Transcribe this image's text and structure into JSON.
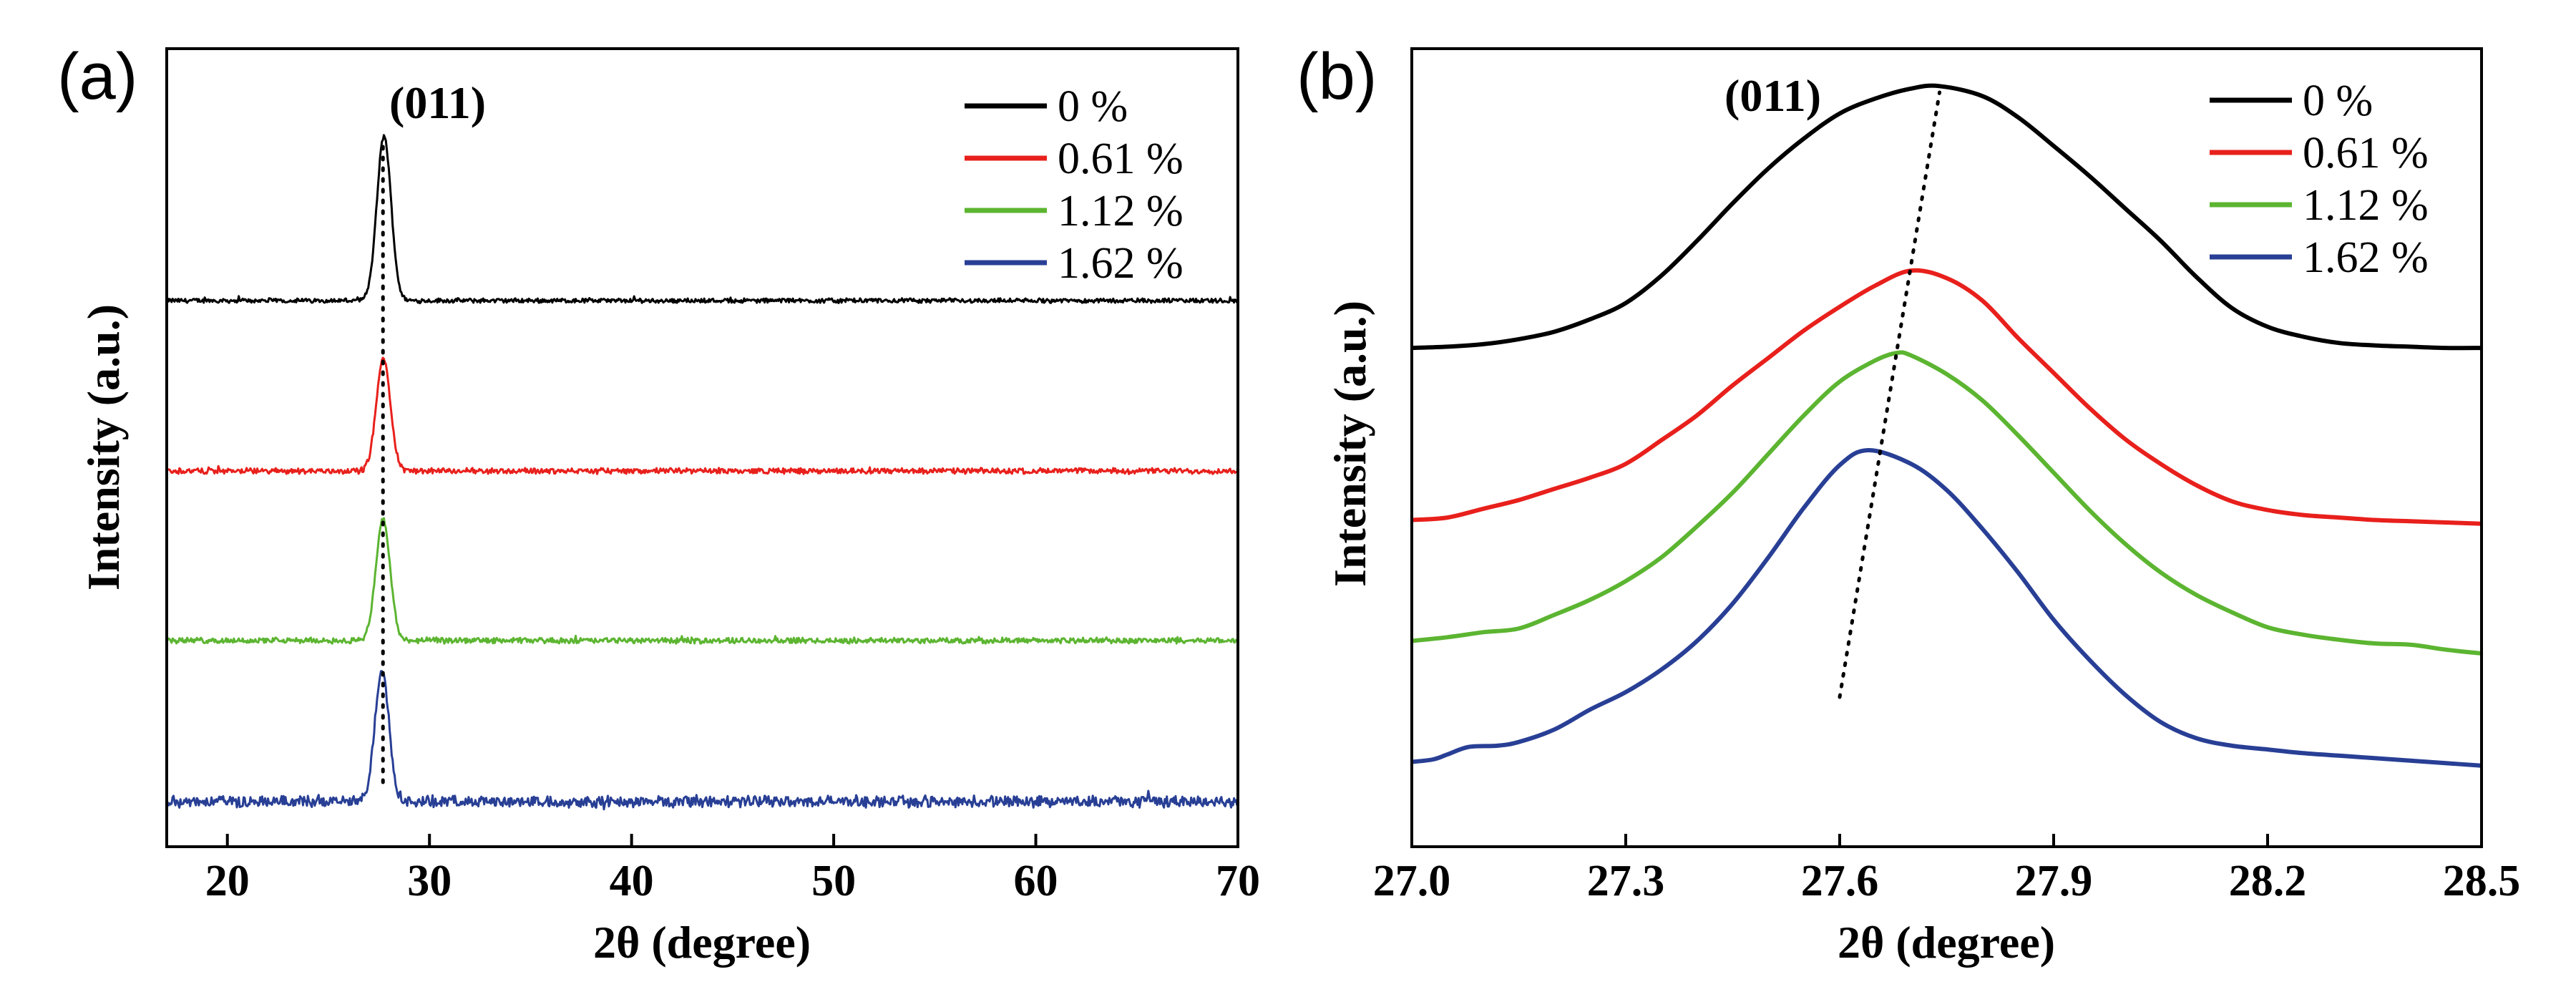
{
  "chart_data": [
    {
      "panel": "(a)",
      "type": "line",
      "title": "",
      "xlabel": "2θ (degree)",
      "ylabel": "Intensity (a.u.)",
      "xlim": [
        17,
        70
      ],
      "xticks": [
        20,
        30,
        40,
        50,
        60,
        70
      ],
      "xtick_labels": [
        "20",
        "30",
        "40",
        "50",
        "60",
        "70"
      ],
      "yticks": "none",
      "annotation": "(011)",
      "peak_position": 27.7,
      "guide_line": {
        "style": "dotted",
        "x": [
          27.7,
          27.7
        ]
      },
      "legend_placement": "top-right",
      "series": [
        {
          "name": "0 %",
          "color": "#000000",
          "baseline": 3.0,
          "peak_x": 27.75,
          "peak_height": 1.0,
          "peak_width": 0.35,
          "noise": 0.012
        },
        {
          "name": "0.61 %",
          "color": "#e8201c",
          "baseline": 2.0,
          "peak_x": 27.72,
          "peak_height": 0.68,
          "peak_width": 0.35,
          "noise": 0.015
        },
        {
          "name": "1.12 %",
          "color": "#5cb531",
          "baseline": 1.0,
          "peak_x": 27.7,
          "peak_height": 0.74,
          "peak_width": 0.35,
          "noise": 0.015
        },
        {
          "name": "1.62 %",
          "color": "#283f95",
          "baseline": 0.0,
          "peak_x": 27.65,
          "peak_height": 0.8,
          "peak_width": 0.35,
          "noise": 0.03
        }
      ]
    },
    {
      "panel": "(b)",
      "type": "line",
      "title": "",
      "xlabel": "2θ (degree)",
      "ylabel": "Intensity (a.u.)",
      "xlim": [
        27.0,
        28.5
      ],
      "xticks": [
        27.0,
        27.3,
        27.6,
        27.9,
        28.2,
        28.5
      ],
      "xtick_labels": [
        "27.0",
        "27.3",
        "27.6",
        "27.9",
        "28.2",
        "28.5"
      ],
      "yticks": "none",
      "annotation": "(011)",
      "guide_line": {
        "style": "dotted",
        "x": [
          27.6,
          27.74
        ],
        "y": [
          0.2,
          5.05
        ]
      },
      "legend_placement": "top-right",
      "series": [
        {
          "name": "0 %",
          "color": "#000000",
          "x": [
            27.0,
            27.05,
            27.1,
            27.15,
            27.2,
            27.25,
            27.3,
            27.35,
            27.4,
            27.45,
            27.5,
            27.55,
            27.6,
            27.65,
            27.7,
            27.74,
            27.8,
            27.85,
            27.9,
            27.95,
            28.0,
            28.05,
            28.1,
            28.15,
            28.2,
            28.25,
            28.3,
            28.35,
            28.4,
            28.45,
            28.5
          ],
          "y": [
            3.0,
            3.01,
            3.03,
            3.07,
            3.13,
            3.23,
            3.36,
            3.58,
            3.86,
            4.16,
            4.44,
            4.68,
            4.88,
            5.0,
            5.08,
            5.1,
            5.02,
            4.85,
            4.62,
            4.38,
            4.12,
            3.86,
            3.57,
            3.32,
            3.17,
            3.09,
            3.04,
            3.02,
            3.01,
            3.0,
            3.0
          ]
        },
        {
          "name": "0.61 %",
          "color": "#e8201c",
          "x": [
            27.0,
            27.05,
            27.1,
            27.15,
            27.2,
            27.25,
            27.3,
            27.35,
            27.4,
            27.45,
            27.5,
            27.55,
            27.6,
            27.65,
            27.7,
            27.75,
            27.8,
            27.85,
            27.9,
            27.95,
            28.0,
            28.05,
            28.1,
            28.15,
            28.2,
            28.25,
            28.3,
            28.35,
            28.4,
            28.45,
            28.5
          ],
          "y": [
            1.62,
            1.64,
            1.71,
            1.78,
            1.87,
            1.96,
            2.07,
            2.26,
            2.46,
            2.7,
            2.92,
            3.14,
            3.33,
            3.5,
            3.62,
            3.56,
            3.38,
            3.08,
            2.8,
            2.52,
            2.27,
            2.07,
            1.9,
            1.77,
            1.7,
            1.66,
            1.64,
            1.62,
            1.61,
            1.6,
            1.59
          ]
        },
        {
          "name": "1.12 %",
          "color": "#5cb531",
          "x": [
            27.0,
            27.05,
            27.1,
            27.15,
            27.2,
            27.25,
            27.3,
            27.35,
            27.4,
            27.45,
            27.5,
            27.55,
            27.6,
            27.65,
            27.68,
            27.7,
            27.75,
            27.8,
            27.85,
            27.9,
            27.95,
            28.0,
            28.05,
            28.1,
            28.15,
            28.2,
            28.25,
            28.3,
            28.35,
            28.4,
            28.45,
            28.5
          ],
          "y": [
            0.65,
            0.68,
            0.72,
            0.75,
            0.86,
            0.98,
            1.13,
            1.32,
            1.57,
            1.84,
            2.15,
            2.46,
            2.73,
            2.9,
            2.96,
            2.94,
            2.79,
            2.58,
            2.3,
            2.0,
            1.7,
            1.43,
            1.2,
            1.02,
            0.88,
            0.76,
            0.7,
            0.66,
            0.63,
            0.62,
            0.58,
            0.55
          ]
        },
        {
          "name": "1.62 %",
          "color": "#283f95",
          "x": [
            27.0,
            27.03,
            27.05,
            27.08,
            27.12,
            27.15,
            27.2,
            27.25,
            27.3,
            27.35,
            27.4,
            27.45,
            27.5,
            27.55,
            27.6,
            27.64,
            27.7,
            27.75,
            27.8,
            27.85,
            27.9,
            27.95,
            28.0,
            28.05,
            28.1,
            28.15,
            28.2,
            28.25,
            28.3,
            28.35,
            28.4,
            28.45,
            28.5
          ],
          "y": [
            -0.32,
            -0.3,
            -0.26,
            -0.2,
            -0.19,
            -0.16,
            -0.06,
            0.1,
            0.24,
            0.42,
            0.65,
            0.95,
            1.32,
            1.72,
            2.06,
            2.18,
            2.07,
            1.86,
            1.55,
            1.2,
            0.82,
            0.5,
            0.22,
            0.0,
            -0.13,
            -0.19,
            -0.22,
            -0.25,
            -0.27,
            -0.29,
            -0.31,
            -0.33,
            -0.35
          ]
        }
      ]
    }
  ]
}
